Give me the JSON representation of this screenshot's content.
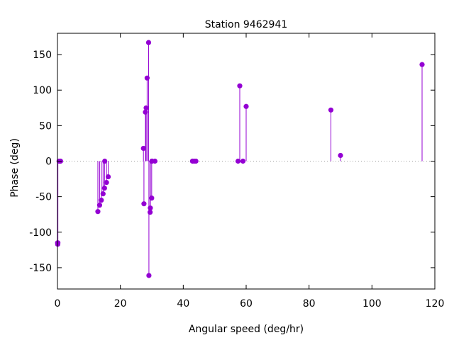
{
  "colors": {
    "series": "#9400d3",
    "axis": "#000000",
    "zero_line": "#a0a0a0"
  },
  "chart_data": {
    "type": "scatter",
    "title": "Station 9462941",
    "xlabel": "Angular speed (deg/hr)",
    "ylabel": "Phase (deg)",
    "xlim": [
      0,
      120
    ],
    "ylim": [
      -180,
      180
    ],
    "x_ticks": [
      {
        "value": 0,
        "label": "0"
      },
      {
        "value": 20,
        "label": "20"
      },
      {
        "value": 40,
        "label": "40"
      },
      {
        "value": 60,
        "label": "60"
      },
      {
        "value": 80,
        "label": "80"
      },
      {
        "value": 100,
        "label": "100"
      },
      {
        "value": 120,
        "label": "120"
      }
    ],
    "y_ticks": [
      {
        "value": -150,
        "label": "-150"
      },
      {
        "value": -100,
        "label": "-100"
      },
      {
        "value": -50,
        "label": "-50"
      },
      {
        "value": 0,
        "label": "0"
      },
      {
        "value": 50,
        "label": "50"
      },
      {
        "value": 100,
        "label": "100"
      },
      {
        "value": 150,
        "label": "150"
      }
    ],
    "grid": false,
    "zero_line": true,
    "style": "impulses with points",
    "points": [
      {
        "x": 0.04,
        "y": -115
      },
      {
        "x": 0.08,
        "y": -117
      },
      {
        "x": 0.14,
        "y": -115
      },
      {
        "x": 0.5,
        "y": 0
      },
      {
        "x": 1.0,
        "y": 0
      },
      {
        "x": 12.85,
        "y": -71
      },
      {
        "x": 13.4,
        "y": -62
      },
      {
        "x": 13.94,
        "y": -55
      },
      {
        "x": 14.5,
        "y": -46
      },
      {
        "x": 14.96,
        "y": -38
      },
      {
        "x": 15.04,
        "y": 0
      },
      {
        "x": 15.59,
        "y": -30
      },
      {
        "x": 16.14,
        "y": -22
      },
      {
        "x": 27.34,
        "y": 18
      },
      {
        "x": 27.5,
        "y": -60
      },
      {
        "x": 27.97,
        "y": 69
      },
      {
        "x": 28.2,
        "y": 75
      },
      {
        "x": 28.51,
        "y": 117
      },
      {
        "x": 28.98,
        "y": 167
      },
      {
        "x": 29.08,
        "y": -161
      },
      {
        "x": 29.46,
        "y": -72
      },
      {
        "x": 29.53,
        "y": -66
      },
      {
        "x": 29.96,
        "y": -52
      },
      {
        "x": 30.0,
        "y": 0
      },
      {
        "x": 30.08,
        "y": 0
      },
      {
        "x": 31.0,
        "y": 0
      },
      {
        "x": 42.93,
        "y": 0
      },
      {
        "x": 43.48,
        "y": 0
      },
      {
        "x": 44.03,
        "y": 0
      },
      {
        "x": 57.42,
        "y": 0
      },
      {
        "x": 57.97,
        "y": 106
      },
      {
        "x": 58.98,
        "y": 0
      },
      {
        "x": 60.0,
        "y": 77
      },
      {
        "x": 86.95,
        "y": 72
      },
      {
        "x": 90.0,
        "y": 8
      },
      {
        "x": 115.94,
        "y": 136
      }
    ]
  }
}
